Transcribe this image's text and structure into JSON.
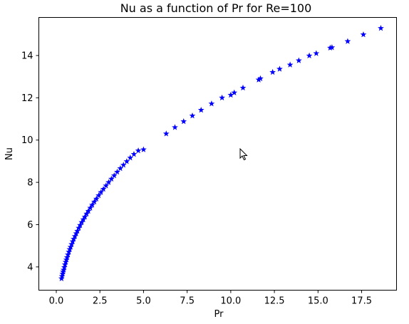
{
  "chart_data": {
    "type": "scatter",
    "title": "Nu as a function of Pr for Re=100",
    "xlabel": "Pr",
    "ylabel": "Nu",
    "xlim": [
      -1.0,
      19.5
    ],
    "ylim": [
      2.9,
      15.8
    ],
    "xticks": [
      0.0,
      2.5,
      5.0,
      7.5,
      10.0,
      12.5,
      15.0,
      17.5
    ],
    "xtick_labels": [
      "0.0",
      "2.5",
      "5.0",
      "7.5",
      "10.0",
      "12.5",
      "15.0",
      "17.5"
    ],
    "yticks": [
      4,
      6,
      8,
      10,
      12,
      14
    ],
    "ytick_labels": [
      "4",
      "6",
      "8",
      "10",
      "12",
      "14"
    ],
    "grid": false,
    "marker": "star",
    "color": "#0000ff",
    "series": [
      {
        "x": [
          0.3,
          0.33,
          0.36,
          0.39,
          0.42,
          0.46,
          0.5,
          0.54,
          0.58,
          0.62,
          0.67,
          0.72,
          0.77,
          0.82,
          0.88,
          0.94,
          1.0,
          1.07,
          1.14,
          1.21,
          1.29,
          1.37,
          1.46,
          1.55,
          1.64,
          1.74,
          1.84,
          1.95,
          2.06,
          2.18,
          2.3,
          2.43,
          2.56,
          2.7,
          2.85,
          3.0,
          3.16,
          3.32,
          3.49,
          3.67,
          3.85,
          4.04,
          4.24,
          4.45,
          4.7,
          5.0,
          6.3,
          6.8,
          7.3,
          7.8,
          8.3,
          8.9,
          9.5,
          10.0,
          10.2,
          10.7,
          11.6,
          11.7,
          12.4,
          12.8,
          13.4,
          13.9,
          14.5,
          14.9,
          15.7,
          15.8,
          16.7,
          17.6,
          18.6
        ],
        "y": [
          3.45,
          3.56,
          3.67,
          3.77,
          3.86,
          3.98,
          4.11,
          4.23,
          4.34,
          4.45,
          4.58,
          4.71,
          4.83,
          4.94,
          5.07,
          5.2,
          5.32,
          5.45,
          5.58,
          5.7,
          5.84,
          5.97,
          6.11,
          6.24,
          6.37,
          6.51,
          6.64,
          6.79,
          6.93,
          7.08,
          7.22,
          7.38,
          7.53,
          7.68,
          7.84,
          8.0,
          8.16,
          8.32,
          8.49,
          8.66,
          8.82,
          8.99,
          9.16,
          9.33,
          9.5,
          9.55,
          10.3,
          10.6,
          10.88,
          11.15,
          11.42,
          11.72,
          12.0,
          12.13,
          12.24,
          12.47,
          12.85,
          12.91,
          13.21,
          13.36,
          13.56,
          13.76,
          13.99,
          14.1,
          14.36,
          14.38,
          14.67,
          14.99,
          15.29
        ]
      }
    ]
  }
}
